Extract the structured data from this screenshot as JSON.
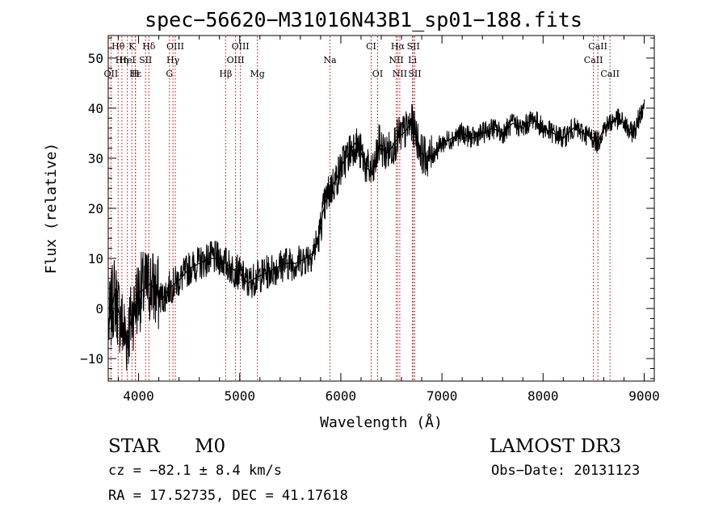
{
  "chart_data": {
    "type": "line",
    "title": "spec−56620−M31016N43B1_sp01−188.fits",
    "xlabel": "Wavelength (Å)",
    "ylabel": "Flux (relative)",
    "xlim": [
      3700,
      9100
    ],
    "ylim": [
      -14.5,
      54.5
    ],
    "xticks": [
      4000,
      5000,
      6000,
      7000,
      8000,
      9000
    ],
    "xtick_labels": [
      "4000",
      "5000",
      "6000",
      "7000",
      "8000",
      "9000"
    ],
    "yticks": [
      -10,
      0,
      10,
      20,
      30,
      40,
      50
    ],
    "ytick_labels": [
      "−10",
      "0",
      "10",
      "20",
      "30",
      "40",
      "50"
    ],
    "grid": false,
    "series": [
      {
        "name": "spectrum",
        "color": "#000000",
        "x": [
          3700,
          3760,
          3820,
          3880,
          3940,
          4000,
          4060,
          4120,
          4180,
          4240,
          4300,
          4360,
          4420,
          4500,
          4600,
          4700,
          4800,
          4860,
          4920,
          5000,
          5080,
          5150,
          5250,
          5350,
          5450,
          5550,
          5650,
          5720,
          5780,
          5820,
          5860,
          5900,
          5960,
          6020,
          6080,
          6140,
          6200,
          6260,
          6320,
          6380,
          6440,
          6500,
          6560,
          6620,
          6660,
          6700,
          6740,
          6800,
          6860,
          6920,
          7000,
          7100,
          7200,
          7300,
          7400,
          7500,
          7600,
          7700,
          7800,
          7900,
          8000,
          8100,
          8200,
          8300,
          8400,
          8500,
          8540,
          8600,
          8660,
          8720,
          8800,
          8860,
          8920,
          8960,
          9000
        ],
        "y": [
          -4,
          3,
          -2,
          -6,
          -1,
          3,
          4,
          5,
          3,
          2,
          4,
          5,
          6,
          8,
          9,
          10,
          10,
          9,
          8,
          7,
          5,
          6,
          7,
          8,
          9,
          9,
          10,
          11,
          14,
          19,
          22,
          24,
          26,
          29,
          31,
          33,
          31,
          28,
          27,
          33,
          31,
          32,
          34,
          35,
          36,
          37,
          35,
          31,
          30,
          31,
          33,
          34,
          35,
          34,
          35,
          36,
          35,
          37,
          36,
          38,
          36,
          35,
          34,
          36,
          35,
          34,
          33,
          36,
          37,
          38,
          37,
          35,
          36,
          39,
          41
        ]
      }
    ],
    "lines": [
      {
        "label": "Hθ",
        "x": 3798,
        "row": 1
      },
      {
        "label": "K",
        "x": 3934,
        "row": 1
      },
      {
        "label": "Hδ",
        "x": 4102,
        "row": 1
      },
      {
        "label": "OIII",
        "x": 4363,
        "row": 1
      },
      {
        "label": "OIII",
        "x": 5007,
        "row": 1
      },
      {
        "label": "CI",
        "x": 6300,
        "row": 1
      },
      {
        "label": "Hα",
        "x": 6563,
        "row": 1
      },
      {
        "label": "SII",
        "x": 6717,
        "row": 1
      },
      {
        "label": "CaII",
        "x": 8542,
        "row": 1
      },
      {
        "label": "Hη",
        "x": 3835,
        "row": 2
      },
      {
        "label": "HeI",
        "x": 3889,
        "row": 2
      },
      {
        "label": "SII",
        "x": 4069,
        "row": 2
      },
      {
        "label": "Hγ",
        "x": 4340,
        "row": 2
      },
      {
        "label": "OIII",
        "x": 4959,
        "row": 2
      },
      {
        "label": "Na",
        "x": 5893,
        "row": 2
      },
      {
        "label": "NII",
        "x": 6548,
        "row": 2
      },
      {
        "label": "Li",
        "x": 6708,
        "row": 2
      },
      {
        "label": "CaII",
        "x": 8498,
        "row": 2
      },
      {
        "label": "OII",
        "x": 3727,
        "row": 3
      },
      {
        "label": "Hε",
        "x": 3970,
        "row": 3
      },
      {
        "label": "H",
        "x": 3968,
        "row": 3
      },
      {
        "label": "G",
        "x": 4305,
        "row": 3
      },
      {
        "label": "Hβ",
        "x": 4861,
        "row": 3
      },
      {
        "label": "Mg",
        "x": 5175,
        "row": 3
      },
      {
        "label": "OI",
        "x": 6364,
        "row": 3
      },
      {
        "label": "NII",
        "x": 6583,
        "row": 3
      },
      {
        "label": "SII",
        "x": 6731,
        "row": 3
      },
      {
        "label": "CaII",
        "x": 8662,
        "row": 3
      }
    ]
  },
  "info": {
    "object_class": "STAR",
    "subclass": "M0",
    "redshift": "cz = −82.1 ± 8.4 km/s",
    "coords": "RA =  17.52735, DEC =  41.17618",
    "survey": "LAMOST DR3",
    "obs_date": "Obs−Date: 20131123"
  },
  "colors": {
    "spectrum": "#000000",
    "line_marker": "#c80000",
    "axes": "#000000"
  }
}
